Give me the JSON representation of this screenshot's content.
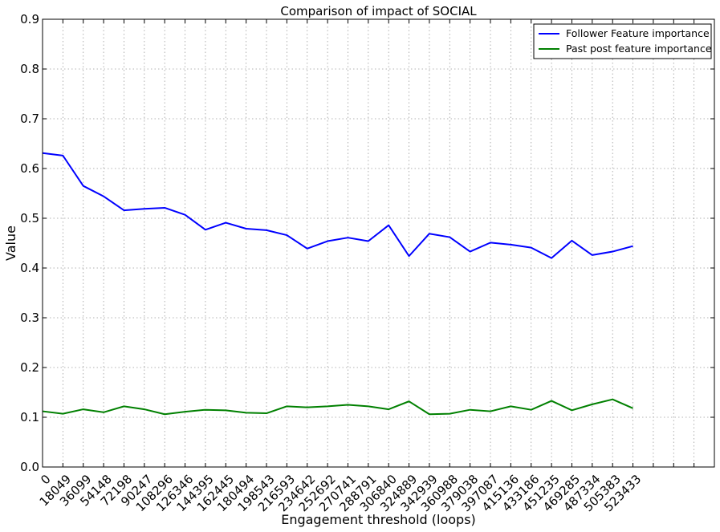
{
  "chart_data": {
    "type": "line",
    "title": "Comparison of impact of SOCIAL",
    "xlabel": "Engagement threshold (loops)",
    "ylabel": "Value",
    "ylim": [
      0.0,
      0.9
    ],
    "yticks": [
      "0.0",
      "0.1",
      "0.2",
      "0.3",
      "0.4",
      "0.5",
      "0.6",
      "0.7",
      "0.8",
      "0.9"
    ],
    "x": [
      "0",
      "18049",
      "36099",
      "54148",
      "72198",
      "90247",
      "108296",
      "126346",
      "144395",
      "162445",
      "180494",
      "198543",
      "216593",
      "234642",
      "252692",
      "270741",
      "288791",
      "306840",
      "324889",
      "342939",
      "360988",
      "379038",
      "397087",
      "415136",
      "433186",
      "451235",
      "469285",
      "487334",
      "505383",
      "523433"
    ],
    "xlim_slots": 33,
    "grid": true,
    "legend_position": "top-right",
    "series": [
      {
        "name": "Follower Feature importance",
        "color": "#0000ff",
        "values": [
          0.631,
          0.626,
          0.565,
          0.544,
          0.516,
          0.519,
          0.521,
          0.507,
          0.477,
          0.491,
          0.479,
          0.476,
          0.466,
          0.439,
          0.454,
          0.461,
          0.454,
          0.486,
          0.424,
          0.469,
          0.462,
          0.433,
          0.451,
          0.447,
          0.441,
          0.42,
          0.455,
          0.426,
          0.433,
          0.444
        ]
      },
      {
        "name": "Past post feature importance",
        "color": "#008000",
        "values": [
          0.112,
          0.107,
          0.116,
          0.11,
          0.122,
          0.116,
          0.106,
          0.111,
          0.115,
          0.114,
          0.109,
          0.108,
          0.122,
          0.12,
          0.122,
          0.125,
          0.122,
          0.116,
          0.132,
          0.106,
          0.107,
          0.115,
          0.112,
          0.122,
          0.115,
          0.133,
          0.114,
          0.126,
          0.136,
          0.118
        ]
      }
    ]
  }
}
